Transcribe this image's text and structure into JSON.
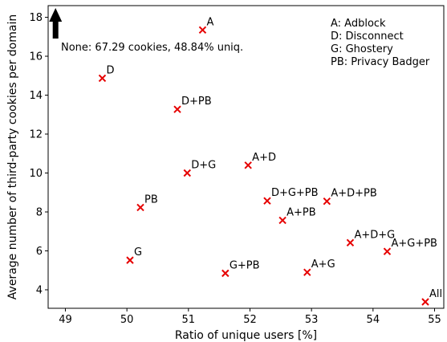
{
  "chart_data": {
    "type": "scatter",
    "title": "",
    "xlabel": "Ratio of unique users [%]",
    "ylabel": "Average number of third-party cookies per domain",
    "xlim": [
      48.72,
      55.15
    ],
    "ylim": [
      3.05,
      18.6
    ],
    "x_ticks": [
      49,
      50,
      51,
      52,
      53,
      54,
      55
    ],
    "y_ticks": [
      4,
      6,
      8,
      10,
      12,
      14,
      16,
      18
    ],
    "grid": false,
    "marker": "x",
    "marker_color": "#e60000",
    "points": [
      {
        "label": "A",
        "x": 51.23,
        "y": 17.35
      },
      {
        "label": "D",
        "x": 49.6,
        "y": 14.87
      },
      {
        "label": "D+PB",
        "x": 50.82,
        "y": 13.27
      },
      {
        "label": "D+G",
        "x": 50.98,
        "y": 10.0
      },
      {
        "label": "A+D",
        "x": 51.97,
        "y": 10.4
      },
      {
        "label": "PB",
        "x": 50.22,
        "y": 8.23
      },
      {
        "label": "D+G+PB",
        "x": 52.28,
        "y": 8.57
      },
      {
        "label": "A+D+PB",
        "x": 53.25,
        "y": 8.55
      },
      {
        "label": "A+PB",
        "x": 52.53,
        "y": 7.57
      },
      {
        "label": "A+D+G",
        "x": 53.63,
        "y": 6.42
      },
      {
        "label": "A+G+PB",
        "x": 54.23,
        "y": 5.97
      },
      {
        "label": "G",
        "x": 50.05,
        "y": 5.52
      },
      {
        "label": "G+PB",
        "x": 51.6,
        "y": 4.85
      },
      {
        "label": "A+G",
        "x": 52.93,
        "y": 4.9
      },
      {
        "label": "All",
        "x": 54.85,
        "y": 3.38
      }
    ],
    "annotation": {
      "text": "None: 67.29 cookies, 48.84% uniq.",
      "arrow_x": 48.84,
      "arrow_direction": "up"
    },
    "legend": {
      "placement": "top-right",
      "entries": [
        "A: Adblock",
        "D: Disconnect",
        "G: Ghostery",
        "PB: Privacy Badger"
      ]
    }
  }
}
